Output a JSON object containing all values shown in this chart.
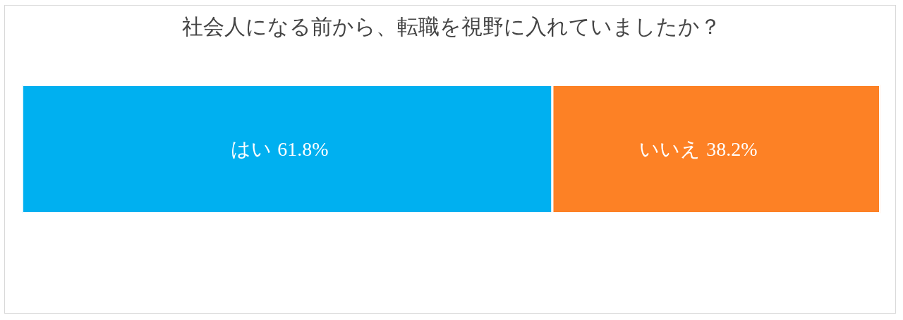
{
  "chart_data": {
    "type": "bar",
    "orientation": "horizontal",
    "stacked": true,
    "title": "社会人になる前から、転職を視野に入れていましたか？",
    "categories": [
      null
    ],
    "series": [
      {
        "name": "はい",
        "color": "#00b0f0",
        "values": [
          61.8
        ],
        "value_labels": [
          "61.8%"
        ]
      },
      {
        "name": "いいえ",
        "color": "#fd8125",
        "values": [
          38.2
        ],
        "value_labels": [
          "38.2%"
        ]
      }
    ],
    "tick_labels": false,
    "grid": false
  }
}
